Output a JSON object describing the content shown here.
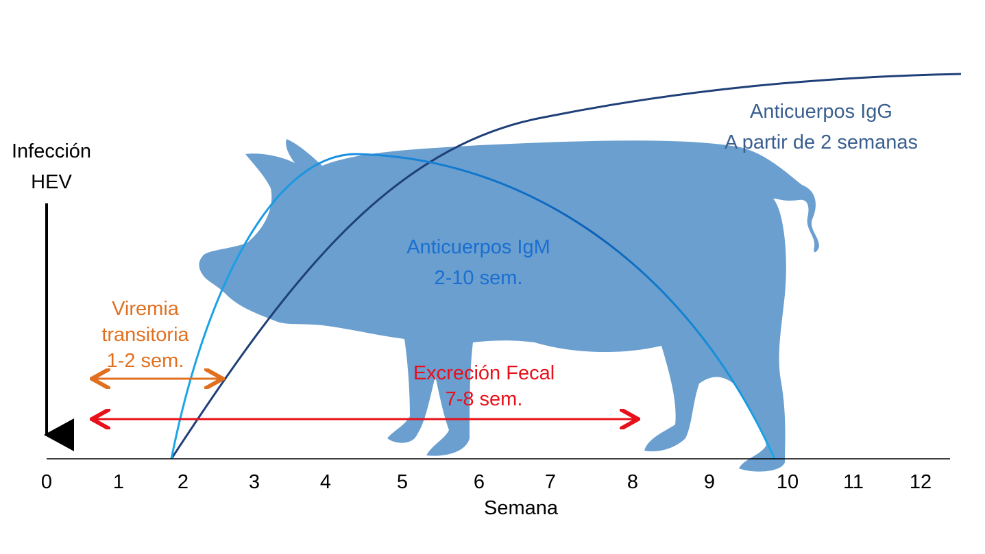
{
  "infection": {
    "lines": [
      "Infección",
      "HEV"
    ]
  },
  "igg": {
    "lines": [
      "Anticuerpos IgG",
      "A partir de 2 semanas"
    ]
  },
  "igm": {
    "lines": [
      "Anticuerpos IgM",
      "2-10 sem."
    ]
  },
  "viremia": {
    "lines": [
      "Viremia",
      "transitoria",
      "1-2 sem."
    ]
  },
  "fecal": {
    "lines": [
      "Excreción Fecal",
      "7-8 sem."
    ]
  },
  "axis": {
    "title": "Semana",
    "ticks": [
      "0",
      "1",
      "2",
      "3",
      "4",
      "5",
      "6",
      "7",
      "8",
      "9",
      "10",
      "11",
      "12"
    ]
  }
}
